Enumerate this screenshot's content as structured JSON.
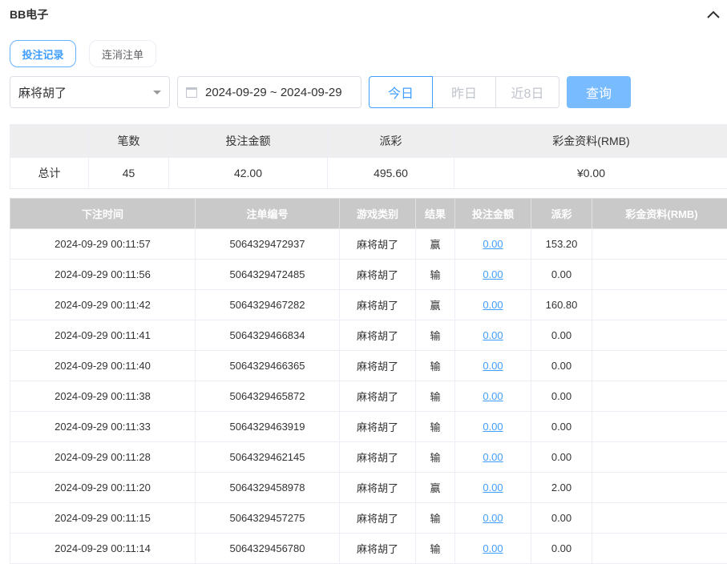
{
  "header": {
    "title": "BB电子",
    "collapse_icon": "chevron-up-icon"
  },
  "tabs": [
    {
      "label": "投注记录",
      "active": true
    },
    {
      "label": "连消注单",
      "active": false
    }
  ],
  "filters": {
    "game": "麻将胡了",
    "date_range": "2024-09-29 ~ 2024-09-29",
    "quick": [
      "今日",
      "昨日",
      "近8日"
    ],
    "search": "查询"
  },
  "colors": {
    "accent": "#409eff",
    "search_button": "#79bbff",
    "header_bg": "#c9c9c9"
  },
  "summary": {
    "headers": [
      "",
      "笔数",
      "投注金额",
      "派彩",
      "彩金资料(RMB)"
    ],
    "row": [
      "总计",
      "45",
      "42.00",
      "495.60",
      "¥0.00"
    ]
  },
  "table": {
    "headers": [
      "下注时间",
      "注单编号",
      "游戏类别",
      "结果",
      "投注金额",
      "派彩",
      "彩金资料(RMB)"
    ],
    "rows": [
      [
        "2024-09-29 00:11:57",
        "5064329472937",
        "麻将胡了",
        "赢",
        "0.00",
        "153.20",
        ""
      ],
      [
        "2024-09-29 00:11:56",
        "5064329472485",
        "麻将胡了",
        "输",
        "0.00",
        "0.00",
        ""
      ],
      [
        "2024-09-29 00:11:42",
        "5064329467282",
        "麻将胡了",
        "赢",
        "0.00",
        "160.80",
        ""
      ],
      [
        "2024-09-29 00:11:41",
        "5064329466834",
        "麻将胡了",
        "输",
        "0.00",
        "0.00",
        ""
      ],
      [
        "2024-09-29 00:11:40",
        "5064329466365",
        "麻将胡了",
        "输",
        "0.00",
        "0.00",
        ""
      ],
      [
        "2024-09-29 00:11:38",
        "5064329465872",
        "麻将胡了",
        "输",
        "0.00",
        "0.00",
        ""
      ],
      [
        "2024-09-29 00:11:33",
        "5064329463919",
        "麻将胡了",
        "输",
        "0.00",
        "0.00",
        ""
      ],
      [
        "2024-09-29 00:11:28",
        "5064329462145",
        "麻将胡了",
        "输",
        "0.00",
        "0.00",
        ""
      ],
      [
        "2024-09-29 00:11:20",
        "5064329458978",
        "麻将胡了",
        "赢",
        "0.00",
        "2.00",
        ""
      ],
      [
        "2024-09-29 00:11:15",
        "5064329457275",
        "麻将胡了",
        "输",
        "0.00",
        "0.00",
        ""
      ],
      [
        "2024-09-29 00:11:14",
        "5064329456780",
        "麻将胡了",
        "输",
        "0.00",
        "0.00",
        ""
      ]
    ]
  }
}
